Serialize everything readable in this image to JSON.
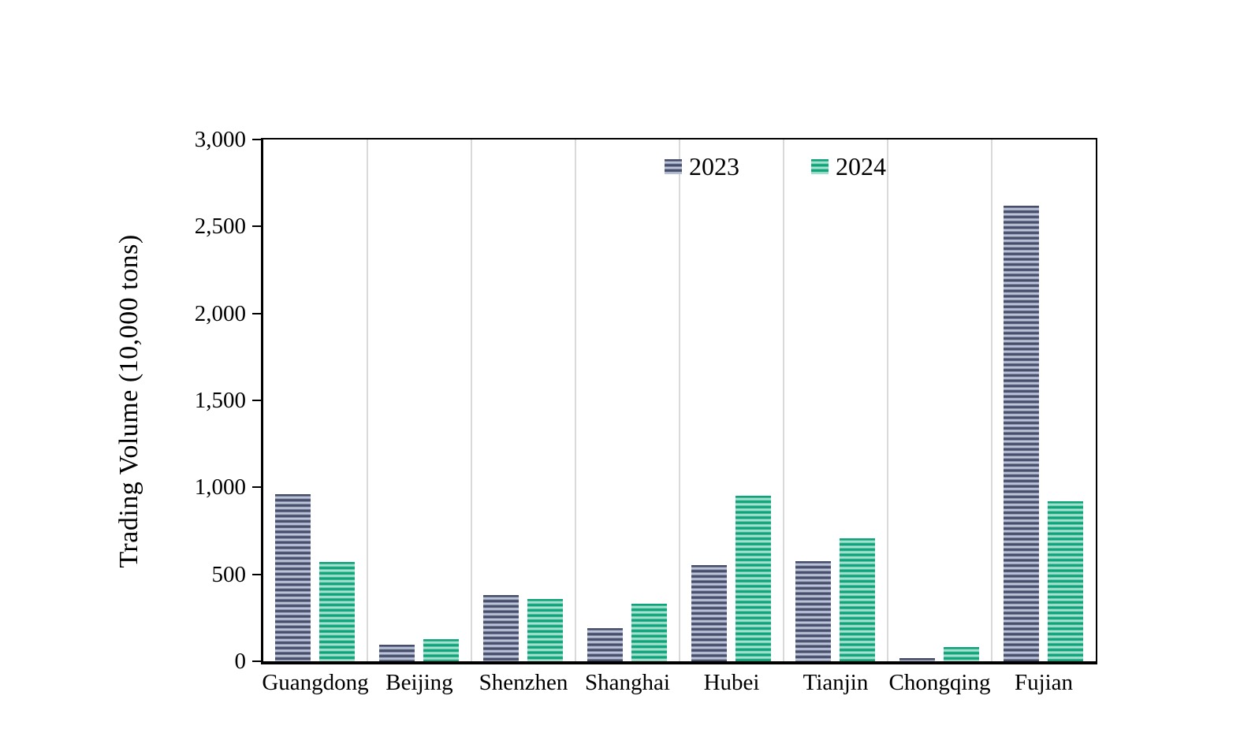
{
  "page": {
    "background": "#ffffff"
  },
  "chart_data": {
    "type": "bar",
    "title": "",
    "xlabel": "",
    "ylabel": "Trading Volume (10,000 tons)",
    "categories": [
      "Guangdong",
      "Beijing",
      "Shenzhen",
      "Shanghai",
      "Hubei",
      "Tianjin",
      "Chongqing",
      "Fujian"
    ],
    "series": [
      {
        "name": "2023",
        "color": "#474e6b",
        "color_light": "#bcc5da",
        "values": [
          960,
          95,
          380,
          190,
          555,
          575,
          20,
          2620
        ]
      },
      {
        "name": "2024",
        "color": "#0ea47b",
        "color_light": "#a9e2d0",
        "values": [
          570,
          125,
          360,
          330,
          950,
          705,
          80,
          920
        ]
      }
    ],
    "ylim": [
      0,
      3000
    ],
    "ytick_step": 500,
    "ytick_labels": [
      "0",
      "500",
      "1,000",
      "1,500",
      "2,000",
      "2,500",
      "3,000"
    ],
    "grid": "vertical-category-separators",
    "gridline_color": "#d9d9d9",
    "legend_position": "inside-top-center",
    "axis_color": "#000000"
  }
}
